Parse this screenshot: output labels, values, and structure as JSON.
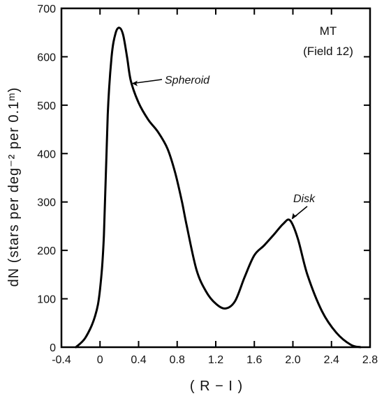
{
  "chart_data": {
    "type": "line",
    "title": "",
    "xlabel": "( R − I )",
    "ylabel": "dN (stars per deg⁻² per 0.1ᵐ)",
    "xlim": [
      -0.4,
      2.8
    ],
    "ylim": [
      0,
      700
    ],
    "xticks": [
      -0.4,
      0,
      0.4,
      0.8,
      1.2,
      1.6,
      2.0,
      2.4,
      2.8
    ],
    "xtick_labels": [
      "-0.4",
      "0",
      "0.4",
      "0.8",
      "1.2",
      "1.6",
      "2.0",
      "2.4",
      "2.8"
    ],
    "yticks": [
      0,
      100,
      200,
      300,
      400,
      500,
      600,
      700
    ],
    "ytick_labels": [
      "0",
      "100",
      "200",
      "300",
      "400",
      "500",
      "600",
      "700"
    ],
    "grid": false,
    "annotations": [
      {
        "text": "MT",
        "x": 2.55,
        "y": 640
      },
      {
        "text": "(Field 12)",
        "x": 2.55,
        "y": 600
      },
      {
        "text": "Spheroid",
        "x": 0.55,
        "y": 555,
        "arrow_to": [
          0.31,
          545
        ]
      },
      {
        "text": "Disk",
        "x": 2.05,
        "y": 305,
        "arrow_to": [
          1.98,
          260
        ]
      }
    ],
    "series": [
      {
        "x": [
          -0.25,
          -0.15,
          -0.05,
          0.0,
          0.04,
          0.08,
          0.12,
          0.16,
          0.2,
          0.24,
          0.28,
          0.32,
          0.4,
          0.5,
          0.6,
          0.7,
          0.78,
          0.85,
          0.9,
          1.0,
          1.1,
          1.2,
          1.3,
          1.4,
          1.5,
          1.6,
          1.7,
          1.8,
          1.9,
          1.97,
          2.05,
          2.15,
          2.3,
          2.45,
          2.6,
          2.7
        ],
        "y": [
          0,
          20,
          65,
          120,
          230,
          480,
          600,
          648,
          660,
          645,
          600,
          550,
          505,
          470,
          445,
          410,
          360,
          300,
          250,
          160,
          115,
          90,
          80,
          95,
          145,
          190,
          210,
          232,
          255,
          262,
          225,
          150,
          75,
          30,
          5,
          0
        ]
      }
    ]
  }
}
